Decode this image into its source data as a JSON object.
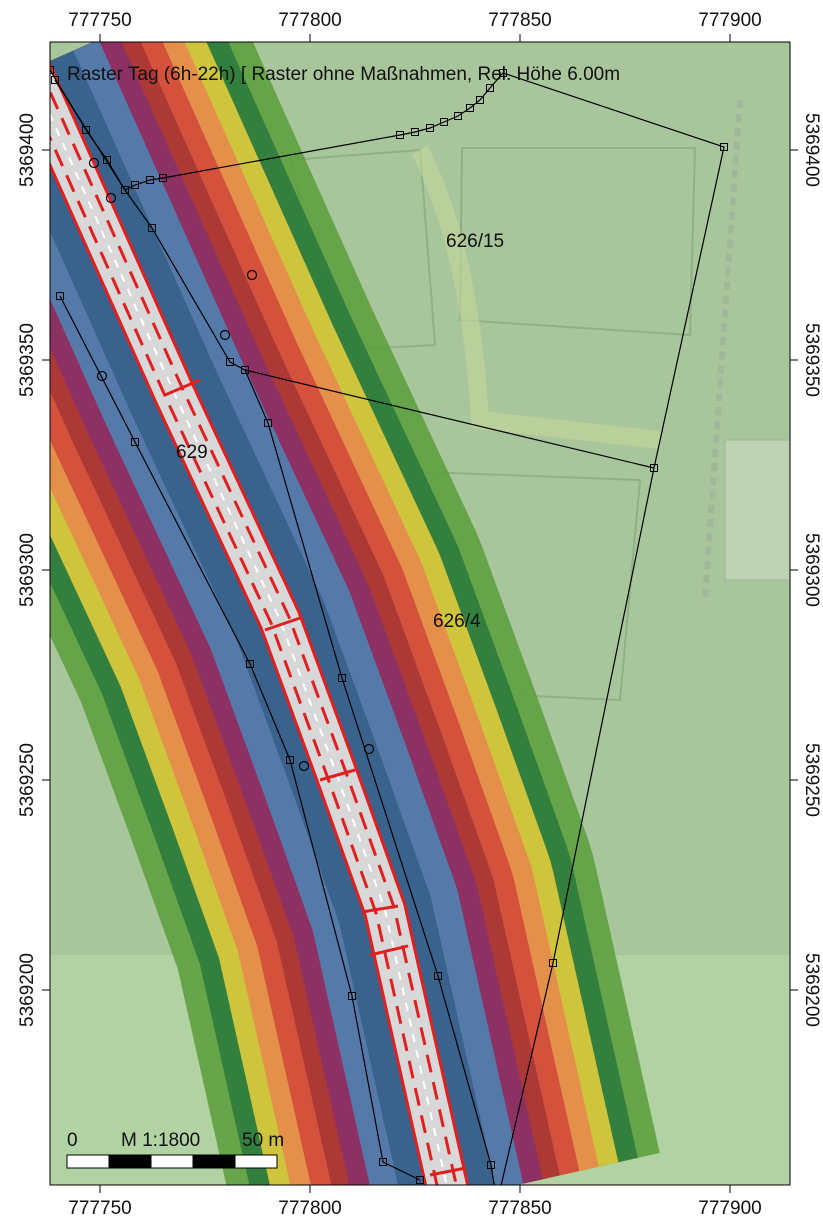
{
  "map": {
    "title": "Raster Tag (6h-22h)  [ Raster ohne Maßnahmen, Rel. Höhe  6.00m",
    "x_ticks": [
      "777750",
      "777800",
      "777850",
      "777900"
    ],
    "y_ticks": [
      "5369400",
      "5369350",
      "5369300",
      "5369250",
      "5369200"
    ],
    "parcels": [
      "626/15",
      "629",
      "626/4"
    ],
    "scale_bar": {
      "start": "0",
      "ratio": "M 1:1800",
      "end": "50 m"
    }
  }
}
